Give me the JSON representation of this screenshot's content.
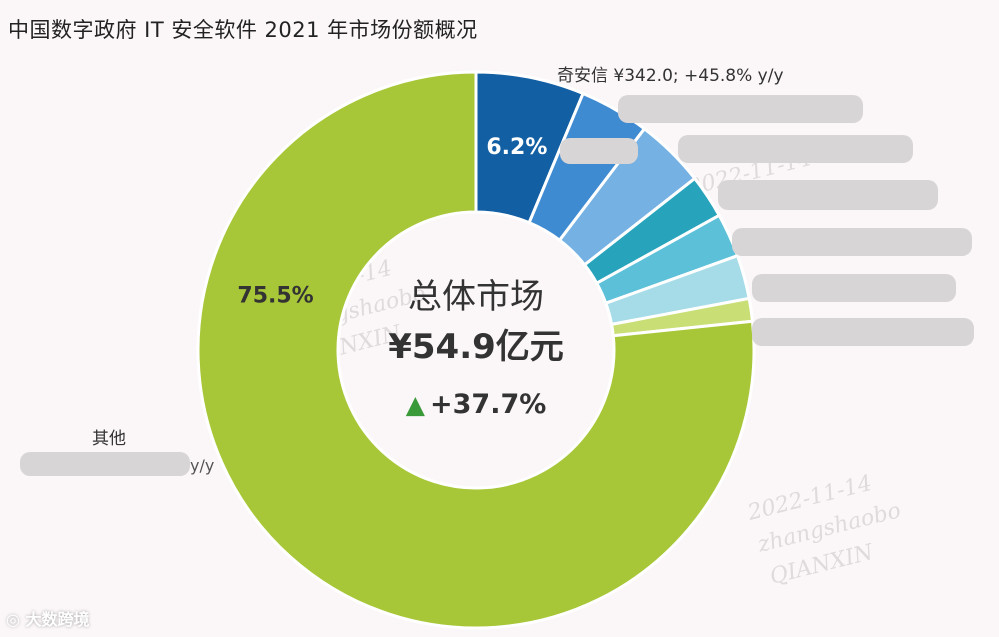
{
  "title": "中国数字政府 IT 安全软件 2021 年市场份额概况",
  "center": {
    "title": "总体市场",
    "total": "¥54.9亿元",
    "growth_arrow": "▲",
    "growth": "+37.7%"
  },
  "callouts": {
    "top_vendor": "奇安信  ¥342.0; +45.8% y/y",
    "others_name": "其他",
    "others_tail": "y/y"
  },
  "watermarks": [
    "2022-11-14",
    "zhangshaobo",
    "QIANXIN"
  ],
  "logo_text": "大数跨境",
  "chart_data": {
    "type": "pie",
    "title": "中国数字政府 IT 安全软件 2021 年市场份额概况",
    "total_label": "¥54.9亿元",
    "growth_label": "+37.7%",
    "slices": [
      {
        "label": "奇安信",
        "value": 6.2,
        "color": "#135fa3",
        "data_label": "6.2%",
        "note": "¥342.0; +45.8% y/y"
      },
      {
        "label": "",
        "value": 4.0,
        "color": "#3f8bd2",
        "data_label": ""
      },
      {
        "label": "",
        "value": 4.0,
        "color": "#76b1e3",
        "data_label": ""
      },
      {
        "label": "",
        "value": 2.5,
        "color": "#27a4bc",
        "data_label": ""
      },
      {
        "label": "",
        "value": 2.5,
        "color": "#5cc0d9",
        "data_label": ""
      },
      {
        "label": "",
        "value": 2.5,
        "color": "#a6dce7",
        "data_label": ""
      },
      {
        "label": "",
        "value": 1.3,
        "color": "#c9df76",
        "data_label": ""
      },
      {
        "label": "其他",
        "value": 75.5,
        "color": "#a8c738",
        "data_label": "75.5%"
      }
    ],
    "legend": "none"
  }
}
